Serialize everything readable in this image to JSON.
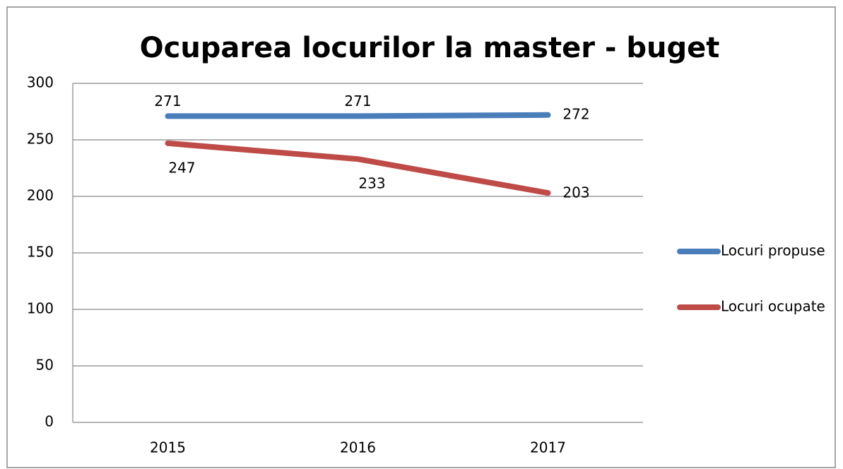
{
  "chart_data": {
    "type": "line",
    "title": "Ocuparea locurilor la master - buget",
    "categories": [
      "2015",
      "2016",
      "2017"
    ],
    "series": [
      {
        "name": "Locuri propuse",
        "color": "#4a7ebb",
        "values": [
          271,
          271,
          272
        ]
      },
      {
        "name": "Locuri ocupate",
        "color": "#be4b48",
        "values": [
          247,
          233,
          203
        ]
      }
    ],
    "ylim": [
      0,
      300
    ],
    "yticks": [
      0,
      50,
      100,
      150,
      200,
      250,
      300
    ],
    "grid": true,
    "legend": "right"
  }
}
